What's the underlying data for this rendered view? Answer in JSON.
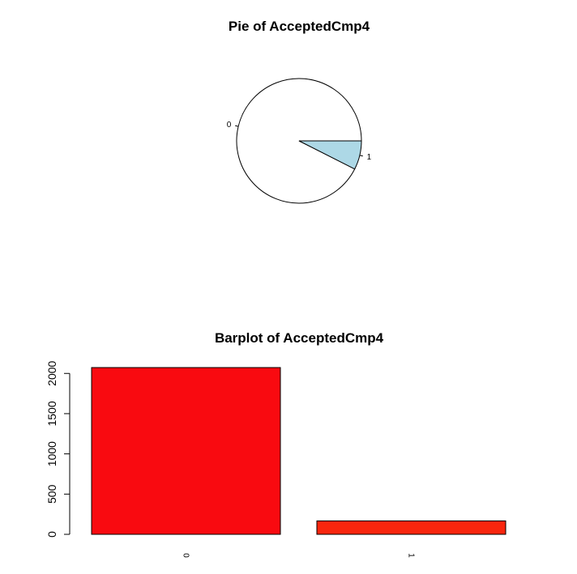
{
  "chart_data": [
    {
      "type": "pie",
      "title": "Pie of AcceptedCmp4",
      "categories": [
        "0",
        "1"
      ],
      "values": [
        2073,
        167
      ],
      "colors": [
        "#FFFFFF",
        "#ADD8E6"
      ]
    },
    {
      "type": "bar",
      "title": "Barplot of AcceptedCmp4",
      "categories": [
        "0",
        "1"
      ],
      "values": [
        2073,
        167
      ],
      "colors": [
        "#F90A10",
        "#F9260E"
      ],
      "ylim": [
        0,
        2073
      ],
      "yticks": [
        "0",
        "500",
        "1000",
        "1500",
        "2000"
      ],
      "xlabel": "",
      "ylabel": ""
    }
  ]
}
